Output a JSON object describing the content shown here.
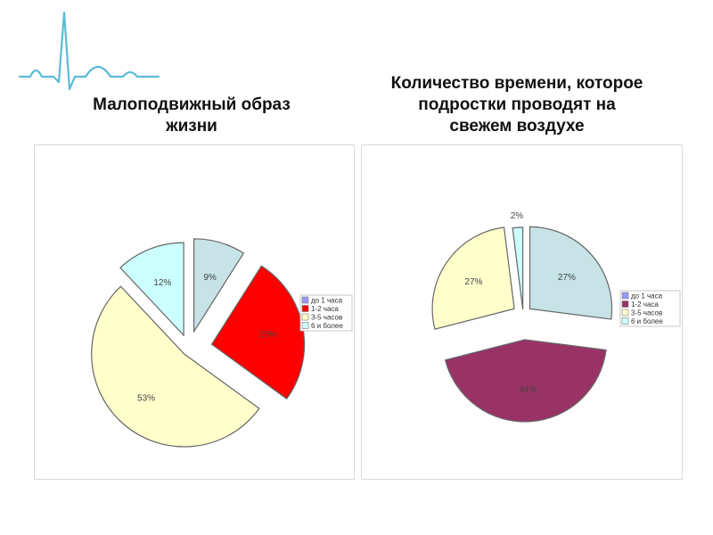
{
  "decoration": {
    "icon": "heartbeat-line-icon",
    "color": "#5bbcd6"
  },
  "chart_data": [
    {
      "type": "pie",
      "title": "Малоподвижный образ\nжизни",
      "categories": [
        "до 1 часа",
        "1-2 часа",
        "3-5 часов",
        "6 и более"
      ],
      "values": [
        9,
        26,
        53,
        12
      ],
      "labels": [
        "9%",
        "26%",
        "53%",
        "12%"
      ],
      "colors": [
        "#c7e3e7",
        "#ff0000",
        "#ffffcc",
        "#ccffff"
      ],
      "legend_colors": [
        "#9999ff",
        "#ff0000",
        "#ffffcc",
        "#ccffff"
      ],
      "legend": "right",
      "exploded": true
    },
    {
      "type": "pie",
      "title": "Количество времени, которое\nподростки проводят на\nсвежем воздухе",
      "categories": [
        "до 1 часа",
        "1-2 часа",
        "3-5 часов",
        "6 и более"
      ],
      "values": [
        27,
        44,
        27,
        2
      ],
      "labels": [
        "27%",
        "44%",
        "27%",
        "2%"
      ],
      "colors": [
        "#c7e3e7",
        "#993366",
        "#ffffcc",
        "#ccffff"
      ],
      "legend_colors": [
        "#9999ff",
        "#993366",
        "#ffffcc",
        "#ccffff"
      ],
      "legend": "right",
      "exploded": true
    }
  ]
}
